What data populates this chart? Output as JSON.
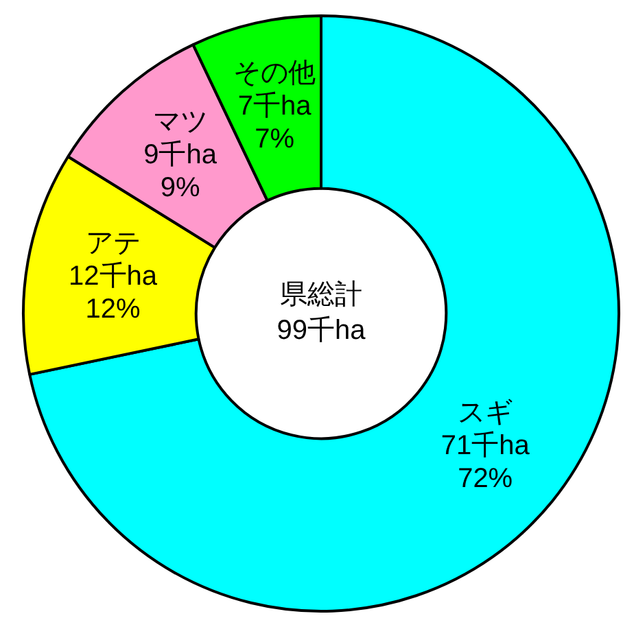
{
  "chart_data": {
    "type": "donut",
    "categories": [
      "スギ",
      "アテ",
      "マツ",
      "その他"
    ],
    "values": [
      71,
      12,
      9,
      7
    ],
    "value_labels": [
      "71千ha\n72%",
      "12千ha\n12%",
      "9千ha\n9%",
      "7千ha\n7%"
    ],
    "colors": [
      "#00ffff",
      "#ffff00",
      "#ff99cc",
      "#00ff00"
    ],
    "annotations": [
      "県総計\n99千ha"
    ],
    "legend": false
  }
}
